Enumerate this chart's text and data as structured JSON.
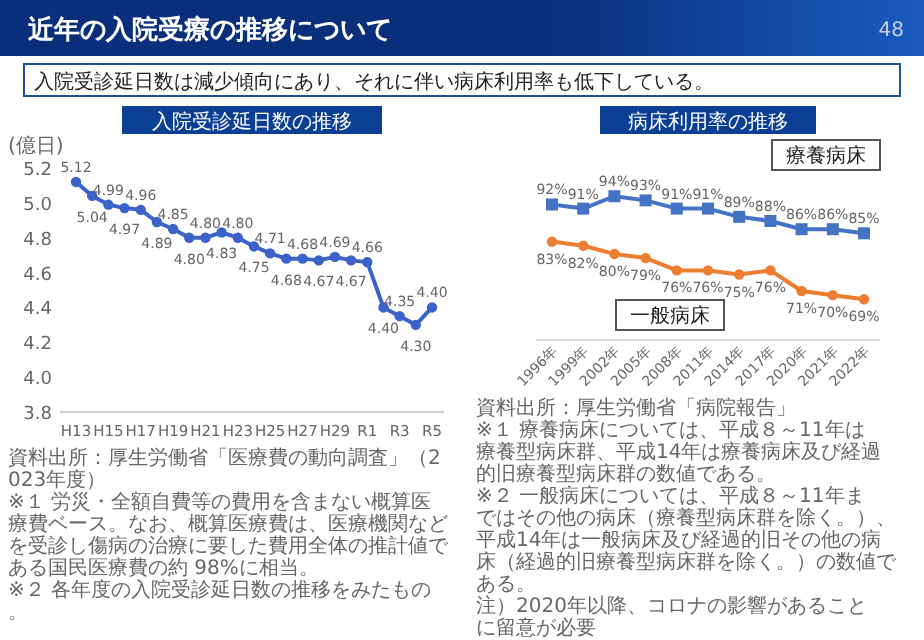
{
  "chart_data": [
    {
      "type": "other",
      "title": "近年の入院受療の推移について",
      "subtitle": "入院受診延日数は減少傾向にあり、それに伴い病床利用率も低下している。",
      "annotations": [
        "48"
      ]
    },
    {
      "type": "line",
      "title": "入院受診延日数の推移",
      "ylabel": "(億日)",
      "categories": [
        "H13",
        null,
        "H15",
        null,
        "H17",
        null,
        "H19",
        null,
        "H21",
        null,
        "H23",
        null,
        "H25",
        null,
        "H27",
        null,
        "H29",
        null,
        "R1",
        null,
        "R3",
        null,
        "R5"
      ],
      "ylim": [
        3.8,
        5.2
      ],
      "yticks": [
        3.8,
        {
          "value": 4,
          "label": "4.0"
        },
        4.2,
        4.4,
        4.6,
        4.8,
        {
          "value": 5,
          "label": "5.0"
        },
        5.2
      ],
      "marker": "circle",
      "series": [
        {
          "color": "#3a62c8",
          "values": [
            5.12,
            5.04,
            4.99,
            4.97,
            4.96,
            4.89,
            4.85,
            4.8,
            4.8,
            4.83,
            4.8,
            4.75,
            4.71,
            4.68,
            4.68,
            4.67,
            4.69,
            4.67,
            4.66,
            4.4,
            4.35,
            4.3,
            4.4
          ],
          "value_labels": [
            "5.12",
            "5.04",
            "4.99",
            "4.97",
            "4.96",
            "4.89",
            "4.85",
            "4.80",
            "4.80",
            "4.83",
            "4.80",
            "4.75",
            "4.71",
            "4.68",
            "4.68",
            "4.67",
            "4.69",
            "4.67",
            "4.66",
            "4.40",
            "4.35",
            "4.30",
            "4.40"
          ]
        }
      ],
      "annotations": [
        "資料出所：厚生労働省「医療費の動向調査」（2023年度）",
        "※１ 労災・全額自費等の費用を含まない概算医療費ベース。なお、概算医療費は、医療機関などを受診し傷病の治療に要した費用全体の推計値である国民医療費の約 98%に相当。",
        "※２ 各年度の入院受診延日数の推移をみたもの。"
      ]
    },
    {
      "type": "line",
      "title": "病床利用率の推移",
      "categories": [
        "1996年",
        "1999年",
        "2002年",
        "2005年",
        "2008年",
        "2011年",
        "2014年",
        "2017年",
        "2020年",
        "2021年",
        "2022年"
      ],
      "series": [
        {
          "name": "療養病床",
          "color": "#4472c4",
          "marker": "square",
          "values": [
            92,
            91,
            94,
            93,
            91,
            91,
            89,
            88,
            86,
            86,
            85
          ],
          "value_labels": [
            "92%",
            "91%",
            "94%",
            "93%",
            "91%",
            "91%",
            "89%",
            "88%",
            "86%",
            "86%",
            "85%"
          ]
        },
        {
          "name": "一般病床",
          "color": "#ed7d31",
          "marker": "circle",
          "values": [
            83,
            82,
            80,
            79,
            76,
            76,
            75,
            76,
            71,
            70,
            69
          ],
          "value_labels": [
            "83%",
            "82%",
            "80%",
            "79%",
            "76%",
            "76%",
            "75%",
            "76%",
            "71%",
            "70%",
            "69%"
          ]
        }
      ],
      "annotations": [
        "資料出所：厚生労働省「病院報告」",
        "※１ 療養病床については、平成８～11年は療養型病床群、平成14年は療養病床及び経過的旧療養型病床群の数値である。",
        "※２ 一般病床については、平成８～11年まではその他の病床（療養型病床群を除く。）、平成14年は一般病床及び経過的旧その他の病床（経過的旧療養型病床群を除く。）の数値である。",
        "注）2020年以降、コロナの影響があることに留意が必要"
      ]
    }
  ]
}
